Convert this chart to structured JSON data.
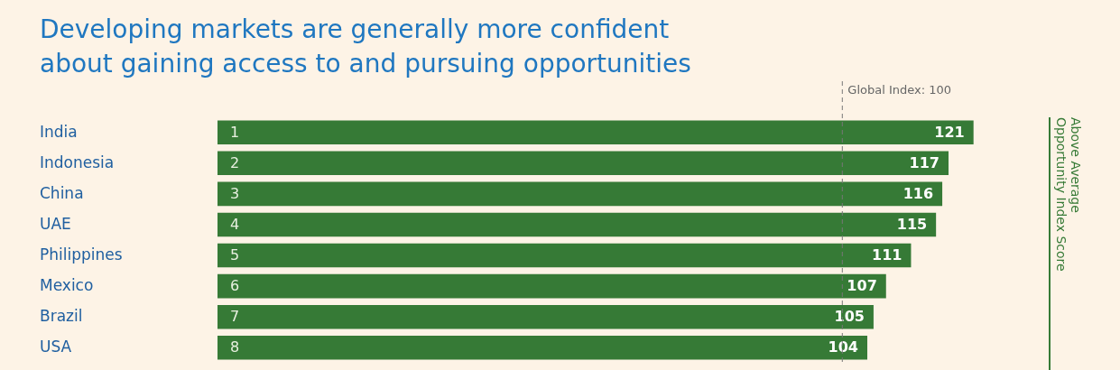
{
  "chart_data": {
    "type": "bar",
    "orientation": "horizontal",
    "title": "Developing markets are generally more confident\nabout gaining access to and pursuing opportunities",
    "categories": [
      "India",
      "Indonesia",
      "China",
      "UAE",
      "Philippines",
      "Mexico",
      "Brazil",
      "USA"
    ],
    "values": [
      121,
      117,
      116,
      115,
      111,
      107,
      105,
      104
    ],
    "color": "#367a36",
    "data_labels": true,
    "tick_labels": "y",
    "grid": false,
    "ref_lines": [
      {
        "axis": "x",
        "value": 100,
        "label": "Global Index: 100",
        "color": "#777777",
        "line_style": "dashed"
      }
    ],
    "annotations": [
      "1",
      "2",
      "3",
      "4",
      "5",
      "6",
      "7",
      "8",
      "Above Average\nOpportunity Index Score"
    ]
  }
}
